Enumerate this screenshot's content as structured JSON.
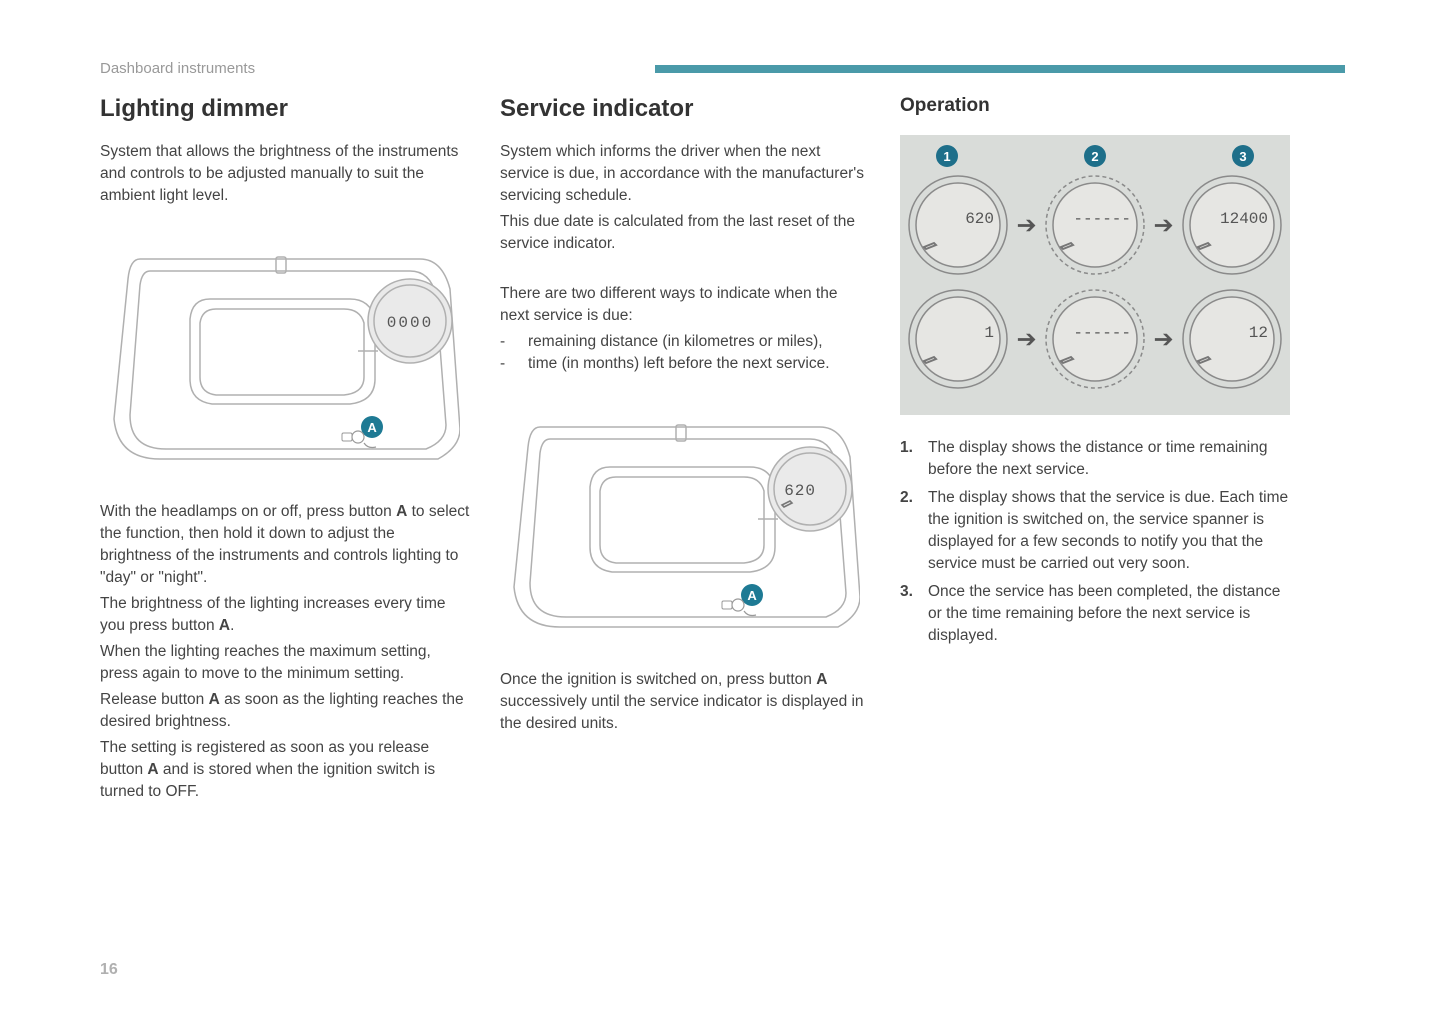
{
  "header": {
    "section_label": "Dashboard instruments"
  },
  "col1": {
    "title": "Lighting dimmer",
    "intro": "System that allows the brightness of the instruments and controls to be adjusted manually to suit the ambient light level.",
    "fig": {
      "display_value": "0000",
      "button_label": "A"
    },
    "body_parts": [
      {
        "t": "text",
        "v": "With the headlamps on or off, press button "
      },
      {
        "t": "bold",
        "v": "A"
      },
      {
        "t": "text",
        "v": " to select the function, then hold it down to adjust the brightness of the instruments and controls lighting to \"day\" or \"night\"."
      }
    ],
    "body2_parts": [
      {
        "t": "text",
        "v": "The brightness of the lighting increases every time you press button "
      },
      {
        "t": "bold",
        "v": "A"
      },
      {
        "t": "text",
        "v": "."
      }
    ],
    "body3": "When the lighting reaches the maximum setting, press again to move to the minimum setting.",
    "body4_parts": [
      {
        "t": "text",
        "v": "Release button "
      },
      {
        "t": "bold",
        "v": "A"
      },
      {
        "t": "text",
        "v": " as soon as the lighting reaches the desired brightness."
      }
    ],
    "body5_parts": [
      {
        "t": "text",
        "v": "The setting is registered as soon as you release button "
      },
      {
        "t": "bold",
        "v": "A"
      },
      {
        "t": "text",
        "v": " and is stored when the ignition switch is turned to OFF."
      }
    ]
  },
  "col2": {
    "title": "Service indicator",
    "intro1": "System which informs the driver when the next service is due, in accordance with the manufacturer's servicing schedule.",
    "intro2": "This due date is calculated from the last reset of the service indicator.",
    "ways_intro": "There are two different ways to indicate when the next service is due:",
    "bullets": [
      "remaining distance (in kilometres or miles),",
      "time (in months) left before the next service."
    ],
    "fig": {
      "display_value": "620",
      "button_label": "A"
    },
    "caption_parts": [
      {
        "t": "text",
        "v": "Once the ignition is switched on, press button "
      },
      {
        "t": "bold",
        "v": "A"
      },
      {
        "t": "text",
        "v": " successively until the service indicator is displayed in the desired units."
      }
    ]
  },
  "col3": {
    "title": "Operation",
    "badges": [
      "1",
      "2",
      "3"
    ],
    "row1": [
      "620",
      "------",
      "12400"
    ],
    "row2": [
      "1",
      "------",
      "12"
    ],
    "steps": [
      "The display shows the distance or time remaining before the next service.",
      "The display shows that the service is due. Each time the ignition is switched on, the service spanner is displayed for a few seconds to notify you that the service must be carried out very soon.",
      "Once the service has been completed, the distance or the time remaining before the next service is displayed."
    ]
  },
  "page_number": "16",
  "colors": {
    "accent": "#4a9aa9",
    "badge": "#1e6f8a",
    "panel_bg": "#d9dcd9",
    "line_gray": "#b0b0b0"
  }
}
